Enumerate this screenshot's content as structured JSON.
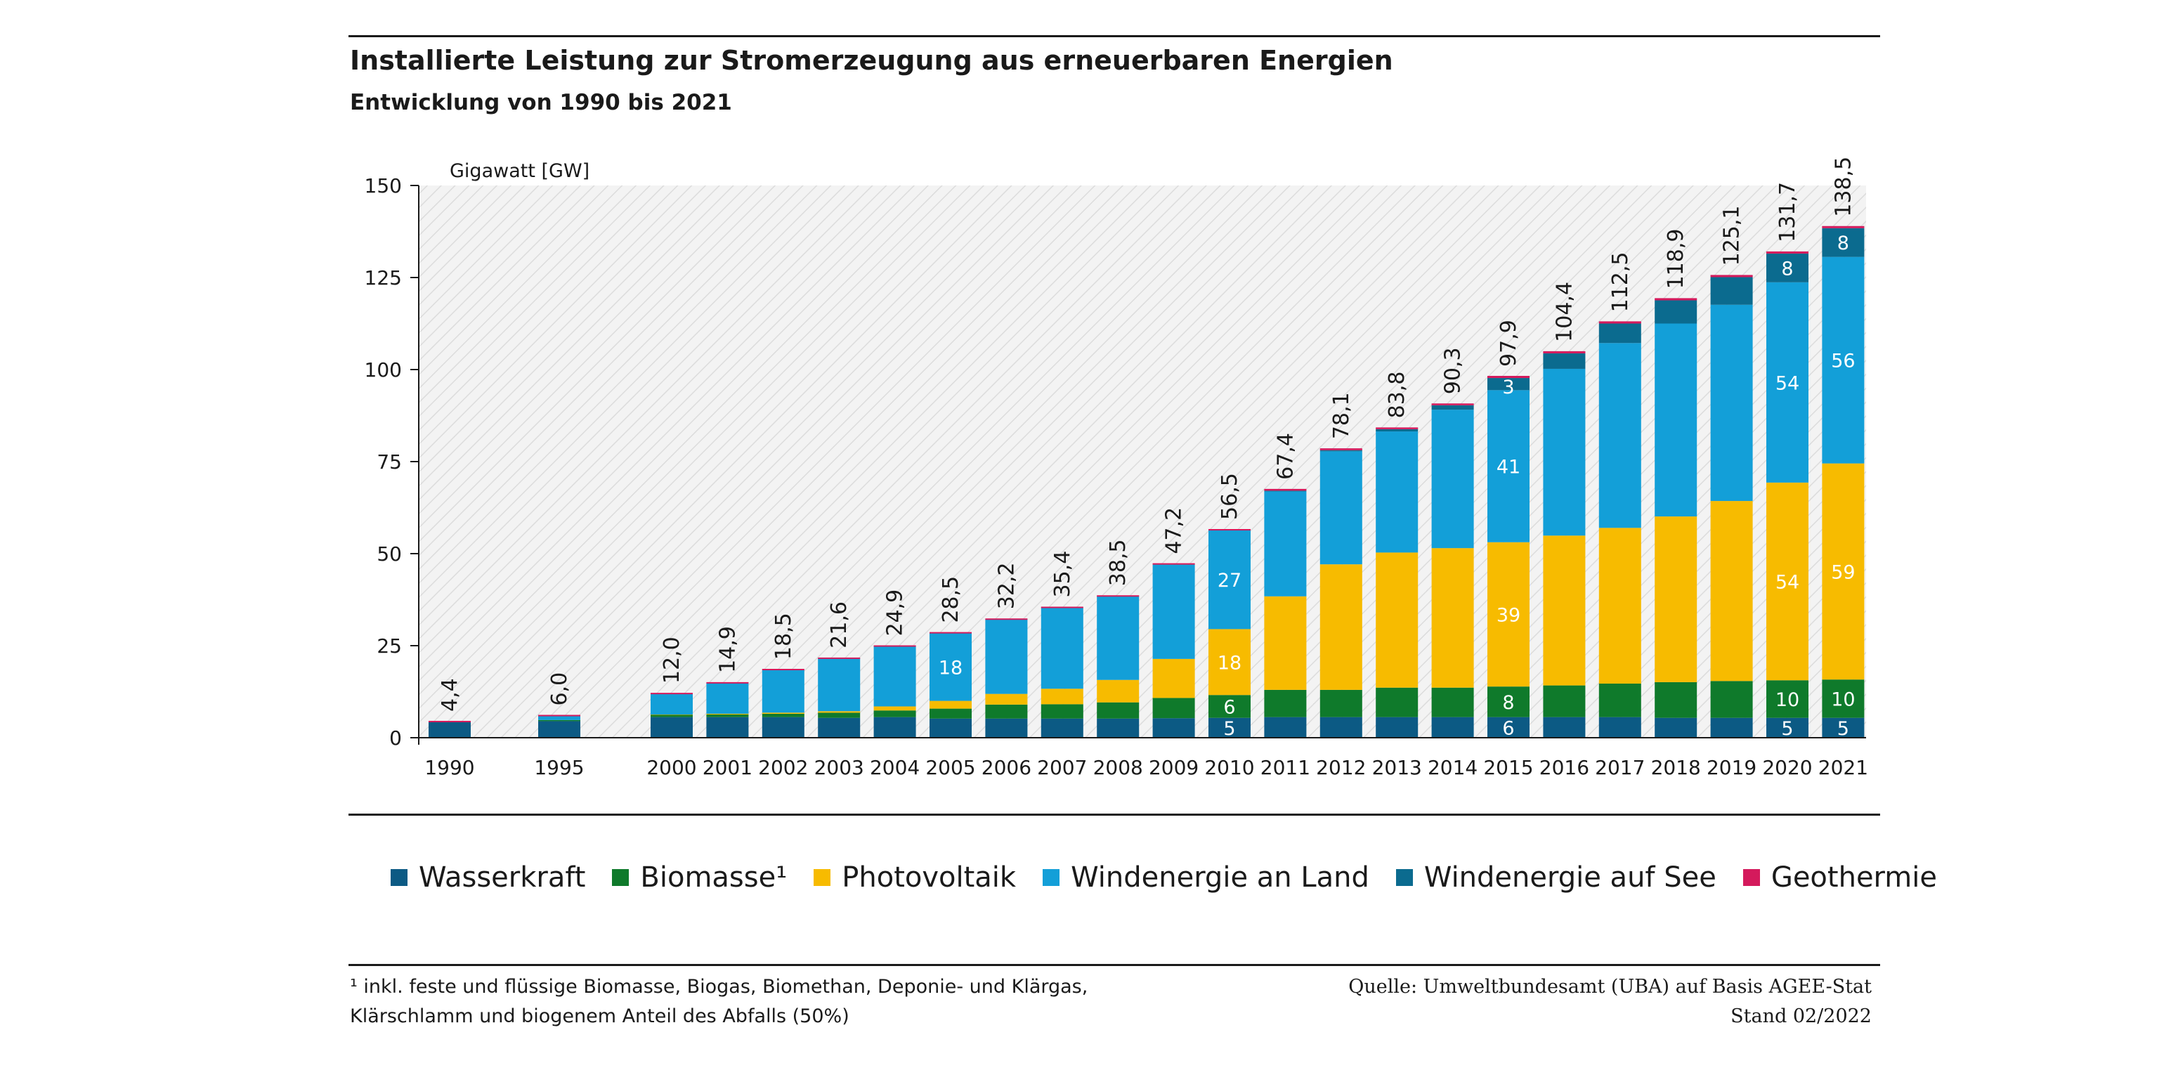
{
  "header": {
    "title": "Installierte Leistung zur Stromerzeugung aus erneuerbaren Energien",
    "subtitle": "Entwicklung von 1990  bis 2021"
  },
  "footer": {
    "footnote_line1": "¹ inkl. feste und flüssige Biomasse, Biogas, Biomethan, Deponie- und Klärgas,",
    "footnote_line2": "Klärschlamm und biogenem Anteil des Abfalls (50%)",
    "source_line1": "Quelle:  Umweltbundesamt (UBA) auf Basis AGEE-Stat",
    "source_line2": "Stand 02/2022"
  },
  "chart_data": {
    "type": "bar",
    "stacked": true,
    "ylabel": "Gigawatt [GW]",
    "ylim": [
      0,
      150
    ],
    "yticks": [
      0,
      25,
      50,
      75,
      100,
      125,
      150
    ],
    "grid": "hatched plot background",
    "legend_position": "bottom",
    "categories": [
      "1990",
      "1995",
      "2000",
      "2001",
      "2002",
      "2003",
      "2004",
      "2005",
      "2006",
      "2007",
      "2008",
      "2009",
      "2010",
      "2011",
      "2012",
      "2013",
      "2014",
      "2015",
      "2016",
      "2017",
      "2018",
      "2019",
      "2020",
      "2021"
    ],
    "totals": [
      "4,4",
      "6,0",
      "12,0",
      "14,9",
      "18,5",
      "21,6",
      "24,9",
      "28,5",
      "32,2",
      "35,4",
      "38,5",
      "47,2",
      "56,5",
      "67,4",
      "78,1",
      "83,8",
      "90,3",
      "97,9",
      "104,4",
      "112,5",
      "118,9",
      "125,1",
      "131,7",
      "138,5"
    ],
    "series": [
      {
        "name": "Wasserkraft",
        "color": "#0c5a84",
        "values": [
          4.3,
          4.5,
          5.6,
          5.6,
          5.6,
          5.4,
          5.6,
          5.2,
          5.2,
          5.2,
          5.2,
          5.3,
          5.4,
          5.6,
          5.6,
          5.6,
          5.6,
          5.6,
          5.6,
          5.6,
          5.4,
          5.4,
          5.4,
          5.4
        ]
      },
      {
        "name": "Biomasse¹",
        "color": "#0f7a2b",
        "values": [
          0.1,
          0.3,
          0.6,
          0.7,
          0.9,
          1.4,
          1.8,
          2.7,
          3.8,
          3.9,
          4.4,
          5.5,
          6.2,
          7.4,
          7.4,
          8.0,
          8.0,
          8.3,
          8.6,
          9.1,
          9.7,
          10.0,
          10.2,
          10.4
        ]
      },
      {
        "name": "Photovoltaik",
        "color": "#f7bb00",
        "values": [
          0,
          0,
          0.1,
          0.2,
          0.3,
          0.4,
          1.1,
          2.1,
          2.9,
          4.2,
          6.1,
          10.6,
          17.9,
          25.4,
          34.1,
          36.7,
          37.9,
          39.2,
          40.7,
          42.3,
          45.0,
          48.9,
          53.7,
          58.7
        ]
      },
      {
        "name": "Windenergie an Land",
        "color": "#139fd8",
        "values": [
          0,
          1.2,
          5.7,
          8.4,
          11.7,
          14.4,
          16.4,
          18.4,
          20.2,
          22.0,
          22.7,
          25.6,
          26.8,
          28.5,
          30.7,
          32.9,
          37.6,
          41.3,
          45.3,
          50.2,
          52.4,
          53.3,
          54.4,
          56.1
        ]
      },
      {
        "name": "Windenergie auf See",
        "color": "#0b6b8f",
        "values": [
          0,
          0,
          0,
          0,
          0,
          0,
          0,
          0,
          0,
          0,
          0,
          0.1,
          0.1,
          0.2,
          0.3,
          0.6,
          1.2,
          3.3,
          4.2,
          5.3,
          6.3,
          7.5,
          7.8,
          7.8
        ]
      },
      {
        "name": "Geothermie",
        "color": "#d41a5c",
        "values": [
          0,
          0,
          0,
          0,
          0,
          0,
          0,
          0.1,
          0.1,
          0.1,
          0.1,
          0.1,
          0.1,
          0.3,
          0.3,
          0.3,
          0.3,
          0.4,
          0.4,
          0.4,
          0.4,
          0.4,
          0.4,
          0.4
        ]
      }
    ],
    "segment_labels": [
      {
        "year": "2005",
        "series": "Windenergie an Land",
        "text": "18"
      },
      {
        "year": "2010",
        "series": "Wasserkraft",
        "text": "5"
      },
      {
        "year": "2010",
        "series": "Biomasse¹",
        "text": "6"
      },
      {
        "year": "2010",
        "series": "Photovoltaik",
        "text": "18"
      },
      {
        "year": "2010",
        "series": "Windenergie an Land",
        "text": "27"
      },
      {
        "year": "2015",
        "series": "Wasserkraft",
        "text": "6"
      },
      {
        "year": "2015",
        "series": "Biomasse¹",
        "text": "8"
      },
      {
        "year": "2015",
        "series": "Photovoltaik",
        "text": "39"
      },
      {
        "year": "2015",
        "series": "Windenergie an Land",
        "text": "41"
      },
      {
        "year": "2015",
        "series": "Windenergie auf See",
        "text": "3"
      },
      {
        "year": "2020",
        "series": "Wasserkraft",
        "text": "5"
      },
      {
        "year": "2020",
        "series": "Biomasse¹",
        "text": "10"
      },
      {
        "year": "2020",
        "series": "Photovoltaik",
        "text": "54"
      },
      {
        "year": "2020",
        "series": "Windenergie an Land",
        "text": "54"
      },
      {
        "year": "2020",
        "series": "Windenergie auf See",
        "text": "8"
      },
      {
        "year": "2021",
        "series": "Wasserkraft",
        "text": "5"
      },
      {
        "year": "2021",
        "series": "Biomasse¹",
        "text": "10"
      },
      {
        "year": "2021",
        "series": "Photovoltaik",
        "text": "59"
      },
      {
        "year": "2021",
        "series": "Windenergie an Land",
        "text": "56"
      },
      {
        "year": "2021",
        "series": "Windenergie auf See",
        "text": "8"
      }
    ]
  }
}
